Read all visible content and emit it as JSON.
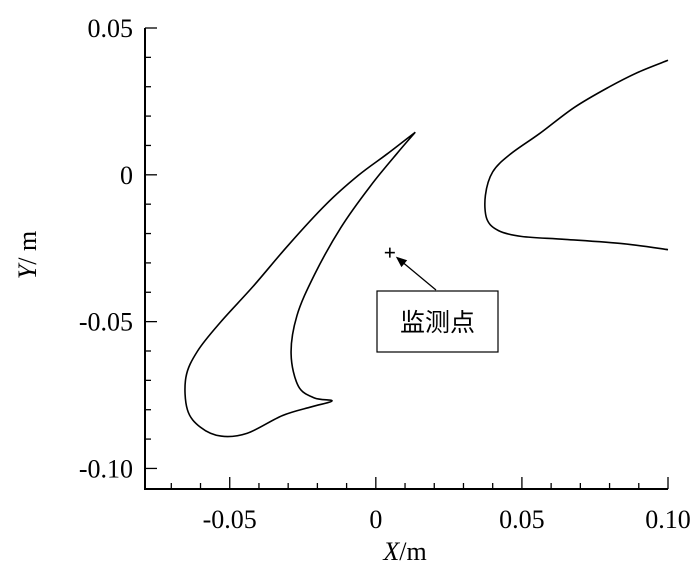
{
  "chart_data": {
    "type": "line",
    "xlabel": {
      "var": "X",
      "unit": "/m"
    },
    "ylabel": {
      "var": "Y",
      "unit": "/ m"
    },
    "xlim": [
      -0.079,
      0.1
    ],
    "ylim": [
      -0.107,
      0.05
    ],
    "x_ticks": [
      {
        "value": -0.05,
        "label": "-0.05"
      },
      {
        "value": 0,
        "label": "0"
      },
      {
        "value": 0.05,
        "label": "0.05"
      },
      {
        "value": 0.1,
        "label": "0.10"
      }
    ],
    "y_ticks": [
      {
        "value": 0.05,
        "label": "0.05"
      },
      {
        "value": 0,
        "label": "0"
      },
      {
        "value": -0.05,
        "label": "-0.05"
      },
      {
        "value": -0.1,
        "label": "-0.10"
      }
    ],
    "grid": false,
    "series": [
      {
        "points": [
          [
            0.0135,
            0.0145
          ],
          [
            0.004,
            0.0072
          ],
          [
            -0.006,
            -0.0002
          ],
          [
            -0.017,
            -0.01
          ],
          [
            -0.03,
            -0.024
          ],
          [
            -0.042,
            -0.038
          ],
          [
            -0.053,
            -0.05
          ],
          [
            -0.061,
            -0.06
          ],
          [
            -0.065,
            -0.069
          ],
          [
            -0.0645,
            -0.08
          ],
          [
            -0.06,
            -0.086
          ],
          [
            -0.053,
            -0.089
          ],
          [
            -0.044,
            -0.088
          ],
          [
            -0.032,
            -0.082
          ],
          [
            -0.022,
            -0.079
          ],
          [
            -0.015,
            -0.077
          ],
          [
            -0.021,
            -0.076
          ],
          [
            -0.0265,
            -0.072
          ],
          [
            -0.029,
            -0.061
          ],
          [
            -0.027,
            -0.048
          ],
          [
            -0.021,
            -0.034
          ],
          [
            -0.012,
            -0.018
          ],
          [
            -0.002,
            -0.004
          ],
          [
            0.007,
            0.007
          ],
          [
            0.0135,
            0.0145
          ]
        ]
      },
      {
        "points": [
          [
            0.1,
            0.039
          ],
          [
            0.09,
            0.035
          ],
          [
            0.08,
            0.03
          ],
          [
            0.068,
            0.023
          ],
          [
            0.056,
            0.014
          ],
          [
            0.046,
            0.007
          ],
          [
            0.04,
            0.001
          ],
          [
            0.0375,
            -0.007
          ],
          [
            0.038,
            -0.015
          ],
          [
            0.042,
            -0.019
          ],
          [
            0.05,
            -0.021
          ],
          [
            0.065,
            -0.022
          ],
          [
            0.085,
            -0.0235
          ],
          [
            0.1,
            -0.0255
          ]
        ]
      }
    ],
    "annotations": [
      {
        "marker": "+",
        "x": 0.0048,
        "y": -0.0265,
        "text": "监测点"
      }
    ]
  }
}
